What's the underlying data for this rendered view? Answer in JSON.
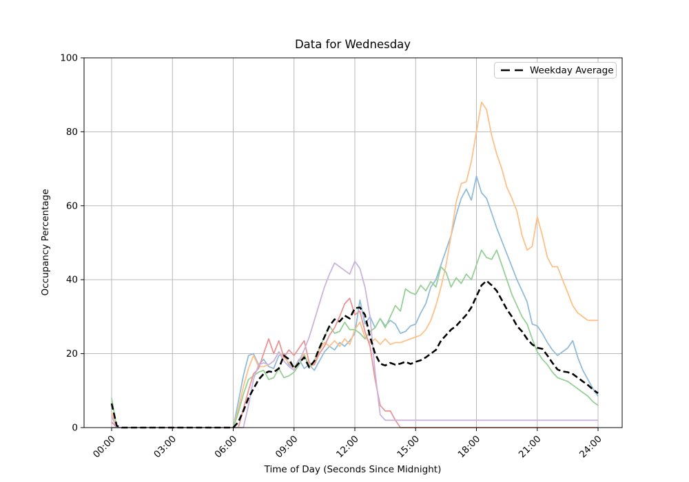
{
  "chart_data": {
    "type": "line",
    "title": "Data for Wednesday",
    "xlabel": "Time of Day (Seconds Since Midnight)",
    "ylabel": "Occupancy Percentage",
    "ylim": [
      0,
      100
    ],
    "x_start": 0,
    "x_step": 0.25,
    "xlim_hours": [
      0,
      24
    ],
    "grid": true,
    "grid_color": "#b0b0b0",
    "xtick_hours": [
      0,
      3,
      6,
      9,
      12,
      15,
      18,
      21,
      24
    ],
    "xtick_labels": [
      "00:00",
      "03:00",
      "06:00",
      "09:00",
      "12:00",
      "15:00",
      "18:00",
      "21:00",
      "24:00"
    ],
    "ytick_values": [
      0,
      20,
      40,
      60,
      80,
      100
    ],
    "legend": {
      "position": "upper right",
      "entries": [
        "Weekday Average"
      ]
    },
    "series": [
      {
        "name": "day-1-blue",
        "color": "#8fbbd9",
        "line_style": "solid",
        "values": [
          0,
          0,
          0,
          0,
          0,
          0,
          0,
          0,
          0,
          0,
          0,
          0,
          0,
          0,
          0,
          0,
          0,
          0,
          0,
          0,
          0,
          0,
          0,
          0,
          0,
          7,
          14,
          19.5,
          20,
          17,
          18.5,
          16.5,
          16,
          19.5,
          20,
          17,
          16,
          18.5,
          16,
          17,
          15.5,
          18,
          20.5,
          22,
          21,
          23,
          22,
          23.5,
          25.5,
          34.5,
          28,
          30,
          27,
          29.5,
          27.5,
          29,
          28,
          25.5,
          26,
          27.5,
          28,
          31,
          33.5,
          38,
          40,
          44,
          48,
          52,
          57.5,
          62,
          64.5,
          61.5,
          68,
          63.5,
          62,
          58,
          54,
          50.5,
          47,
          43.5,
          40,
          37,
          34,
          28,
          27.5,
          25.5,
          23,
          21,
          19.5,
          20.5,
          21.5,
          23.5,
          19,
          15.5,
          13,
          10.5,
          8.5
        ]
      },
      {
        "name": "day-2-orange",
        "color": "#ffbf86",
        "line_style": "solid",
        "values": [
          4,
          0,
          0,
          0,
          0,
          0,
          0,
          0,
          0,
          0,
          0,
          0,
          0,
          0,
          0,
          0,
          0,
          0,
          0,
          0,
          0,
          0,
          0,
          0,
          0,
          5,
          11,
          16,
          19.5,
          16.5,
          16.5,
          17,
          18,
          20.5,
          19,
          17.5,
          16,
          18,
          20,
          16.5,
          17,
          21,
          23,
          22,
          23.5,
          22,
          24,
          22.5,
          26.5,
          28.5,
          24.5,
          23,
          24,
          22.5,
          24,
          22.5,
          23,
          23,
          23.5,
          24,
          24.5,
          25,
          26.5,
          29,
          33,
          38,
          44,
          52,
          61,
          66,
          66.5,
          72,
          80,
          88,
          86,
          79,
          74,
          70,
          65,
          62,
          58.5,
          52,
          48,
          49,
          57,
          52,
          46,
          43.5,
          43.5,
          40,
          36.5,
          33,
          31,
          30,
          29,
          29,
          29
        ]
      },
      {
        "name": "day-3-green",
        "color": "#95cf95",
        "line_style": "solid",
        "values": [
          8,
          0,
          0,
          0,
          0,
          0,
          0,
          0,
          0,
          0,
          0,
          0,
          0,
          0,
          0,
          0,
          0,
          0,
          0,
          0,
          0,
          0,
          0,
          0,
          0,
          4,
          9,
          13,
          14,
          15,
          15.5,
          13,
          13.5,
          16,
          13.5,
          14,
          15,
          17,
          19.5,
          16.5,
          18,
          21.5,
          24.5,
          27.5,
          25.5,
          26,
          28.5,
          26.5,
          26.5,
          25.5,
          24,
          26,
          27,
          29.5,
          27,
          30,
          33,
          31.5,
          37.5,
          36.5,
          36,
          38.5,
          37,
          39.5,
          38,
          43.5,
          42,
          38,
          40.5,
          39,
          41.5,
          40,
          44,
          48,
          46,
          45.5,
          48,
          44,
          40,
          36,
          33,
          30,
          28,
          24,
          20.5,
          18.5,
          17,
          15,
          13.5,
          13,
          12.5,
          11.5,
          10.5,
          9.5,
          8.5,
          7,
          6
        ]
      },
      {
        "name": "day-4-red",
        "color": "#ea9393",
        "line_style": "solid",
        "values": [
          1.5,
          0,
          0,
          0,
          0,
          0,
          0,
          0,
          0,
          0,
          0,
          0,
          0,
          0,
          0,
          0,
          0,
          0,
          0,
          0,
          0,
          0,
          0,
          0,
          0,
          0,
          5,
          10,
          14.5,
          16,
          20,
          24,
          20,
          23.5,
          19,
          21,
          19.5,
          21.5,
          23.5,
          17.5,
          17,
          20,
          22,
          25,
          27,
          30,
          33.5,
          35,
          30.5,
          31.5,
          26,
          22,
          13,
          6,
          4.5,
          4.5,
          2,
          0,
          0,
          0,
          0,
          0,
          0,
          0,
          0,
          0,
          0,
          0,
          0,
          0,
          0,
          0,
          0,
          0,
          0,
          0,
          0,
          0,
          0,
          0,
          0,
          0,
          0,
          0,
          0,
          0,
          0,
          0,
          0,
          0,
          0,
          0,
          0,
          0,
          0,
          0,
          0
        ]
      },
      {
        "name": "day-5-purple",
        "color": "#c9b3de",
        "line_style": "solid",
        "values": [
          3,
          0,
          0,
          0,
          0,
          0,
          0,
          0,
          0,
          0,
          0,
          0,
          0,
          0,
          0,
          0,
          0,
          0,
          0,
          0,
          0,
          0,
          0,
          0,
          0,
          0,
          0,
          6,
          13,
          17,
          17.5,
          17,
          18,
          20.5,
          18,
          16.5,
          15.5,
          18,
          21,
          24.5,
          29,
          33.5,
          38,
          41.5,
          44.5,
          43.5,
          42.5,
          41.5,
          45,
          43,
          38,
          30,
          15,
          3.5,
          2,
          2,
          2,
          2,
          2,
          2,
          2,
          2,
          2,
          2,
          2,
          2,
          2,
          2,
          2,
          2,
          2,
          2,
          2,
          2,
          2,
          2,
          2,
          2,
          2,
          2,
          2,
          2,
          2,
          2,
          2,
          2,
          2,
          2,
          2,
          2,
          2,
          2,
          2,
          2,
          2,
          2,
          2
        ]
      },
      {
        "name": "weekday-average",
        "color": "#000000",
        "line_style": "dashed",
        "values": [
          6.5,
          0.5,
          0,
          0,
          0,
          0,
          0,
          0,
          0,
          0,
          0,
          0,
          0,
          0,
          0,
          0,
          0,
          0,
          0,
          0,
          0,
          0,
          0,
          0,
          0,
          1.5,
          4.5,
          8,
          10.5,
          13,
          14.5,
          15.2,
          15,
          16,
          19.5,
          18.5,
          16,
          17.5,
          19,
          16.3,
          18,
          21.5,
          24.5,
          27.5,
          29.3,
          28.7,
          30.3,
          29.5,
          32.3,
          32.5,
          30.5,
          24.5,
          20,
          17.3,
          16.8,
          17.5,
          17,
          17.3,
          17.8,
          17.2,
          17.8,
          18.2,
          19,
          20,
          21,
          23.5,
          25,
          26.5,
          27.5,
          29,
          30.5,
          32.5,
          35.5,
          38.5,
          39.7,
          38.5,
          37,
          34.5,
          32,
          30,
          27.5,
          26,
          24,
          22.5,
          21.6,
          21.3,
          19.5,
          17.5,
          15.7,
          15.2,
          15,
          14.5,
          13.5,
          12.5,
          11.5,
          10.3,
          9.3
        ]
      }
    ]
  }
}
